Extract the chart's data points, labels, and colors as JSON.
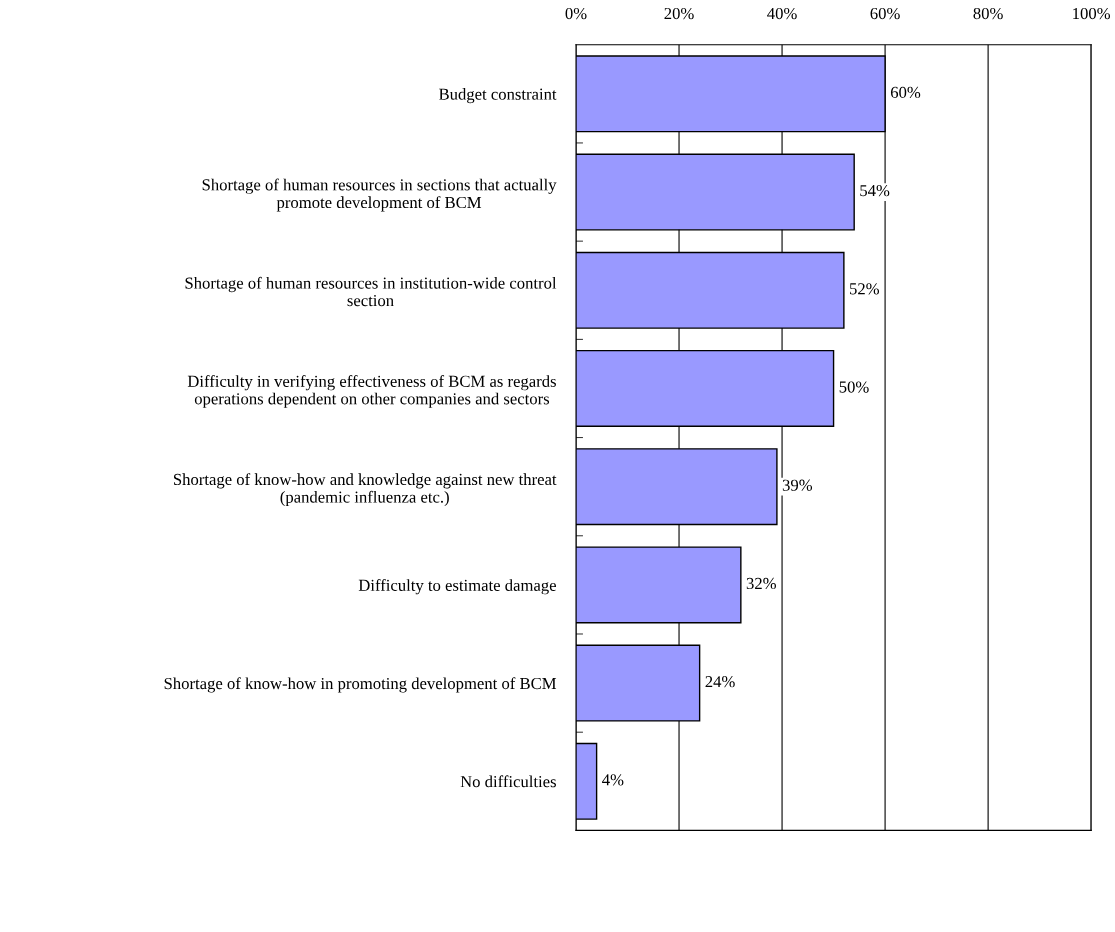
{
  "chart_data": {
    "type": "bar",
    "orientation": "horizontal",
    "categories": [
      "Budget constraint",
      "Shortage of human resources in sections that actually\npromote development of BCM",
      "Shortage of human resources in institution-wide control\nsection",
      "Difficulty in verifying effectiveness of BCM as regards\noperations dependent on other companies and sectors",
      "Shortage of know-how and knowledge against new threat\n(pandemic influenza etc.)",
      "Difficulty to estimate damage",
      "Shortage of know-how in promoting development of BCM",
      "No difficulties"
    ],
    "values": [
      60,
      54,
      52,
      50,
      39,
      32,
      24,
      4
    ],
    "value_labels": [
      "60%",
      "54%",
      "52%",
      "50%",
      "39%",
      "32%",
      "24%",
      "4%"
    ],
    "color": "#9999ff",
    "xlim": [
      0,
      100
    ],
    "xticks": [
      {
        "value": 0,
        "label": "0%"
      },
      {
        "value": 20,
        "label": "20%"
      },
      {
        "value": 40,
        "label": "40%"
      },
      {
        "value": 60,
        "label": "60%"
      },
      {
        "value": 80,
        "label": "80%"
      },
      {
        "value": 100,
        "label": "100%"
      }
    ],
    "grid": "x",
    "legend": false
  }
}
